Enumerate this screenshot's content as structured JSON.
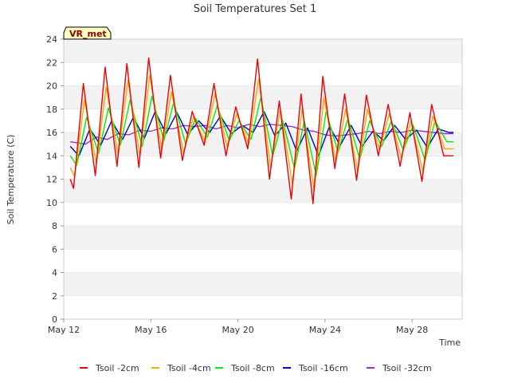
{
  "chart_data": {
    "type": "line",
    "title": "Soil Temperatures Set 1",
    "xlabel": "Time",
    "ylabel": "Soil Temperature (C)",
    "tag": "VR_met",
    "ylim": [
      0,
      24
    ],
    "yticks": [
      0,
      2,
      4,
      6,
      8,
      10,
      12,
      14,
      16,
      18,
      20,
      22,
      24
    ],
    "xlim": [
      0,
      18.3
    ],
    "xticks": [
      {
        "pos": 0,
        "label": "May 12"
      },
      {
        "pos": 4,
        "label": "May 16"
      },
      {
        "pos": 8,
        "label": "May 20"
      },
      {
        "pos": 12,
        "label": "May 24"
      },
      {
        "pos": 16,
        "label": "May 28"
      }
    ],
    "grid": "horizontal bands",
    "legend": "bottom",
    "colors": {
      "band": "#f2f2f2",
      "grid": "#dddddd",
      "tag_fill": "#ffffc0"
    },
    "series": [
      {
        "name": "Tsoil -2cm",
        "color": "#ee0000",
        "x": [
          0.3,
          0.45,
          0.9,
          1.45,
          1.9,
          2.45,
          2.9,
          3.45,
          3.9,
          4.45,
          4.9,
          5.45,
          5.9,
          6.45,
          6.9,
          7.45,
          7.9,
          8.45,
          8.9,
          9.45,
          9.9,
          10.45,
          10.9,
          11.45,
          11.9,
          12.45,
          12.9,
          13.45,
          13.9,
          14.45,
          14.9,
          15.45,
          15.9,
          16.45,
          16.9,
          17.45,
          17.9
        ],
        "y": [
          12.0,
          11.2,
          20.2,
          12.3,
          21.6,
          13.1,
          21.9,
          13.0,
          22.4,
          13.8,
          20.9,
          13.6,
          17.8,
          14.9,
          20.2,
          14.0,
          18.2,
          14.6,
          22.3,
          12.0,
          18.7,
          10.3,
          19.3,
          9.9,
          20.8,
          12.9,
          19.3,
          11.9,
          19.2,
          14.0,
          18.4,
          13.1,
          17.7,
          11.8,
          18.4,
          14.0,
          14.0
        ]
      },
      {
        "name": "Tsoil -4cm",
        "color": "#ffa500",
        "x": [
          0.3,
          0.5,
          0.95,
          1.5,
          1.95,
          2.5,
          2.95,
          3.5,
          3.95,
          4.5,
          4.95,
          5.5,
          5.95,
          6.5,
          6.95,
          7.5,
          7.95,
          8.5,
          8.95,
          9.5,
          9.95,
          10.5,
          10.95,
          11.5,
          11.95,
          12.5,
          12.95,
          13.5,
          13.95,
          14.5,
          14.95,
          15.5,
          15.95,
          16.5,
          16.95,
          17.5,
          17.9
        ],
        "y": [
          13.0,
          12.2,
          18.8,
          13.3,
          19.9,
          14.0,
          20.5,
          14.0,
          20.9,
          14.5,
          19.5,
          14.2,
          17.3,
          15.2,
          19.3,
          14.8,
          17.6,
          15.0,
          20.6,
          13.0,
          18.0,
          11.6,
          18.0,
          11.0,
          19.0,
          13.5,
          18.0,
          12.6,
          18.0,
          14.5,
          17.6,
          13.8,
          17.0,
          12.6,
          17.4,
          14.6,
          14.6
        ]
      },
      {
        "name": "Tsoil -8cm",
        "color": "#00ee00",
        "x": [
          0.3,
          0.6,
          1.05,
          1.6,
          2.05,
          2.6,
          3.05,
          3.6,
          4.05,
          4.6,
          5.05,
          5.6,
          6.05,
          6.6,
          7.05,
          7.6,
          8.05,
          8.6,
          9.05,
          9.6,
          10.05,
          10.6,
          11.05,
          11.6,
          12.05,
          12.6,
          13.05,
          13.6,
          14.05,
          14.6,
          15.05,
          15.6,
          16.05,
          16.6,
          17.05,
          17.6,
          17.9
        ],
        "y": [
          14.0,
          13.2,
          17.3,
          14.2,
          18.1,
          14.9,
          18.8,
          14.8,
          19.1,
          15.3,
          18.6,
          15.0,
          17.2,
          15.6,
          18.3,
          15.3,
          17.0,
          15.4,
          19.0,
          14.0,
          17.1,
          12.9,
          17.0,
          12.3,
          17.8,
          14.3,
          17.2,
          13.7,
          17.0,
          14.8,
          17.0,
          14.5,
          16.6,
          13.6,
          17.0,
          15.2,
          15.2
        ]
      },
      {
        "name": "Tsoil -16cm",
        "color": "#0000cc",
        "x": [
          0.3,
          0.7,
          1.2,
          1.7,
          2.2,
          2.7,
          3.2,
          3.7,
          4.2,
          4.7,
          5.2,
          5.7,
          6.2,
          6.7,
          7.2,
          7.7,
          8.2,
          8.7,
          9.2,
          9.7,
          10.2,
          10.7,
          11.2,
          11.7,
          12.2,
          12.7,
          13.2,
          13.7,
          14.2,
          14.7,
          15.2,
          15.7,
          16.2,
          16.7,
          17.2,
          17.7,
          17.9
        ],
        "y": [
          14.8,
          14.0,
          16.3,
          14.9,
          17.0,
          15.4,
          17.3,
          15.5,
          17.8,
          15.9,
          17.7,
          15.8,
          17.0,
          16.0,
          17.4,
          15.9,
          16.6,
          16.0,
          17.8,
          15.7,
          16.8,
          14.4,
          16.4,
          14.0,
          16.5,
          14.9,
          16.6,
          14.8,
          16.1,
          15.3,
          16.6,
          15.4,
          16.2,
          14.7,
          16.3,
          16.0,
          16.0
        ]
      },
      {
        "name": "Tsoil -32cm",
        "color": "#9932cc",
        "x": [
          0.3,
          1.0,
          1.5,
          2.0,
          2.5,
          3.0,
          3.5,
          4.0,
          4.5,
          5.0,
          5.5,
          6.0,
          6.5,
          7.0,
          7.5,
          8.0,
          8.5,
          9.0,
          9.5,
          10.0,
          10.5,
          11.0,
          11.5,
          12.0,
          12.5,
          13.0,
          13.5,
          14.0,
          14.5,
          15.0,
          15.5,
          16.0,
          16.5,
          17.0,
          17.5,
          17.9
        ],
        "y": [
          15.2,
          15.0,
          15.6,
          15.4,
          15.9,
          15.8,
          16.2,
          16.1,
          16.4,
          16.3,
          16.6,
          16.5,
          16.6,
          16.3,
          16.6,
          16.4,
          16.7,
          16.5,
          16.7,
          16.6,
          16.5,
          16.2,
          16.1,
          15.8,
          15.7,
          15.8,
          15.9,
          16.1,
          15.9,
          16.1,
          16.0,
          16.2,
          16.1,
          16.0,
          15.9,
          15.9
        ]
      }
    ]
  }
}
